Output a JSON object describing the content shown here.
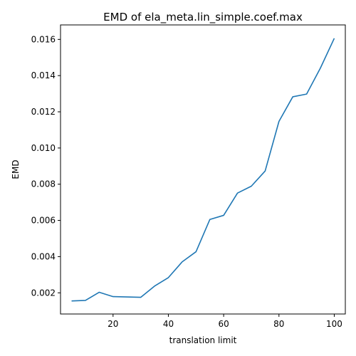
{
  "chart_data": {
    "type": "line",
    "title": "EMD of ela_meta.lin_simple.coef.max",
    "xlabel": "translation limit",
    "ylabel": "EMD",
    "xlim": [
      1,
      104
    ],
    "ylim": [
      0.00083,
      0.0168
    ],
    "xticks": [
      20,
      40,
      60,
      80,
      100
    ],
    "xtick_labels": [
      "20",
      "40",
      "60",
      "80",
      "100"
    ],
    "yticks": [
      0.002,
      0.004,
      0.006,
      0.008,
      0.01,
      0.012,
      0.014,
      0.016
    ],
    "ytick_labels": [
      "0.002",
      "0.004",
      "0.006",
      "0.008",
      "0.010",
      "0.012",
      "0.014",
      "0.016"
    ],
    "grid": false,
    "series": [
      {
        "color": "#1f77b4",
        "x": [
          5,
          10,
          15,
          20,
          25,
          30,
          35,
          40,
          45,
          50,
          55,
          60,
          65,
          70,
          75,
          80,
          85,
          90,
          95,
          100
        ],
        "y": [
          0.00155,
          0.00158,
          0.00203,
          0.00179,
          0.00177,
          0.00175,
          0.00237,
          0.00284,
          0.00371,
          0.00427,
          0.00605,
          0.00628,
          0.00751,
          0.00789,
          0.00873,
          0.01147,
          0.01283,
          0.01298,
          0.01442,
          0.01606
        ]
      }
    ]
  }
}
